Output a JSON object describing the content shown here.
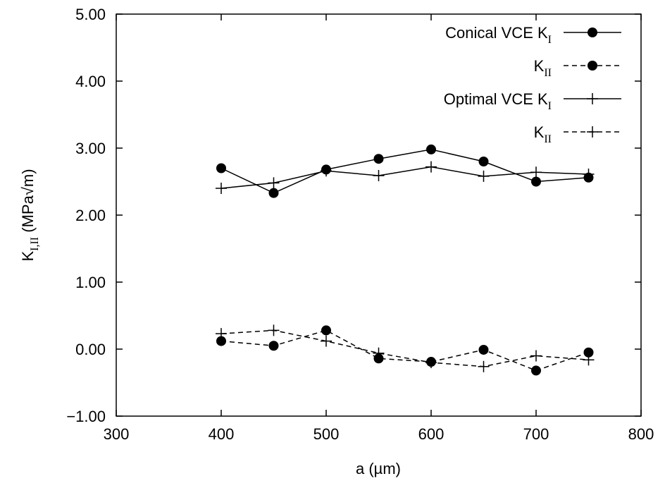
{
  "chart_data": {
    "type": "line",
    "xlabel": "a (µm)",
    "ylabel": {
      "main": "K",
      "sub": "I,II",
      "unit": " (MPa√m)"
    },
    "xlim": [
      300,
      800
    ],
    "ylim": [
      -1.0,
      5.0
    ],
    "xticks": [
      "300",
      "400",
      "500",
      "600",
      "700",
      "800"
    ],
    "yticks": [
      "−1.00",
      "0.00",
      "1.00",
      "2.00",
      "3.00",
      "4.00",
      "5.00"
    ],
    "x": [
      400,
      450,
      500,
      550,
      600,
      650,
      700,
      750
    ],
    "grid": false,
    "legend_position": "top-right",
    "legend": [
      {
        "prefix": "Conical VCE K",
        "sub": "I"
      },
      {
        "prefix": "K",
        "sub": "II"
      },
      {
        "prefix": "Optimal VCE K",
        "sub": "I"
      },
      {
        "prefix": "K",
        "sub": "II"
      }
    ],
    "series": [
      {
        "values": [
          2.7,
          2.33,
          2.68,
          2.84,
          2.98,
          2.8,
          2.5,
          2.56
        ],
        "marker": "circle",
        "dash": "solid"
      },
      {
        "values": [
          0.12,
          0.05,
          0.28,
          -0.14,
          -0.19,
          -0.01,
          -0.32,
          -0.05
        ],
        "marker": "circle",
        "dash": "dashed"
      },
      {
        "values": [
          2.4,
          2.48,
          2.66,
          2.59,
          2.72,
          2.58,
          2.64,
          2.61
        ],
        "marker": "plus",
        "dash": "solid"
      },
      {
        "values": [
          0.23,
          0.28,
          0.12,
          -0.06,
          -0.2,
          -0.26,
          -0.1,
          -0.16
        ],
        "marker": "plus",
        "dash": "dashed"
      }
    ]
  }
}
